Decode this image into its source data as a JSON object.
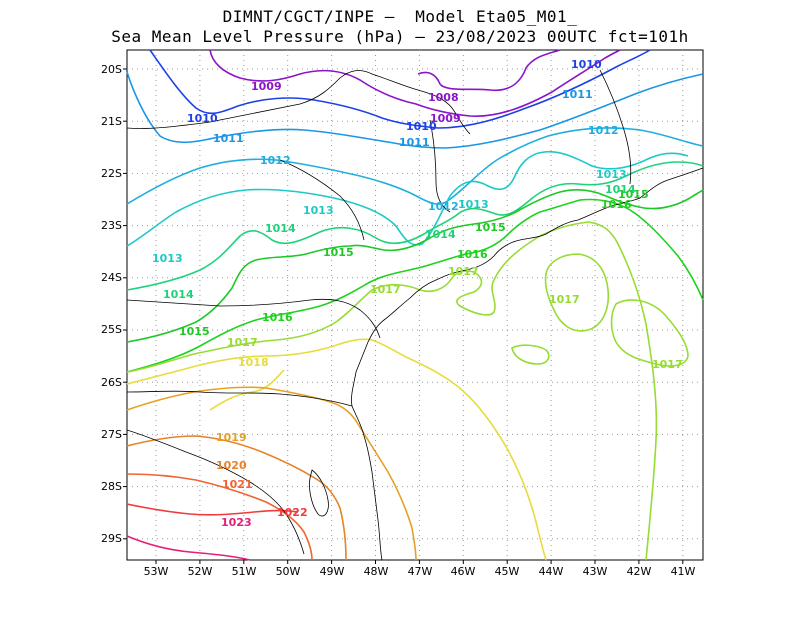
{
  "title": {
    "line1": "DIMNT/CGCT/INPE –  Model Eta05_M01_",
    "line2": "Sea Mean Level Pressure (hPa) – 23/08/2023 00UTC fct=101h"
  },
  "axes": {
    "lat_ticks": [
      "20S",
      "21S",
      "22S",
      "23S",
      "24S",
      "25S",
      "26S",
      "27S",
      "28S",
      "29S"
    ],
    "lon_ticks": [
      "53W",
      "52W",
      "51W",
      "50W",
      "49W",
      "48W",
      "47W",
      "46W",
      "45W",
      "44W",
      "43W",
      "42W",
      "41W"
    ]
  },
  "colors": {
    "c1008": "#8a14c8",
    "c1009": "#8a14c8",
    "c1010": "#1e40e6",
    "c1011": "#1996e6",
    "c1012": "#1eaee0",
    "c1013": "#1ec8c8",
    "c1014": "#1ed27a",
    "c1015": "#1ec828",
    "c1016": "#1ed21e",
    "c1017": "#96dc32",
    "c1018": "#e6dc3c",
    "c1019": "#e6a028",
    "c1020": "#e68228",
    "c1021": "#f06432",
    "c1022": "#f03c3c",
    "c1023": "#e61e78",
    "coast": "#000000",
    "grid": "#999999"
  },
  "isobar_labels": [
    {
      "text": "1009",
      "color": "c1009"
    },
    {
      "text": "1008",
      "color": "c1008"
    },
    {
      "text": "1009",
      "color": "c1009"
    },
    {
      "text": "1010",
      "color": "c1010"
    },
    {
      "text": "1010",
      "color": "c1010"
    },
    {
      "text": "1010",
      "color": "c1010"
    },
    {
      "text": "1011",
      "color": "c1011"
    },
    {
      "text": "1011",
      "color": "c1011"
    },
    {
      "text": "1011",
      "color": "c1011"
    },
    {
      "text": "1012",
      "color": "c1012"
    },
    {
      "text": "1012",
      "color": "c1012"
    },
    {
      "text": "1012",
      "color": "c1012"
    },
    {
      "text": "1013",
      "color": "c1013"
    },
    {
      "text": "1013",
      "color": "c1013"
    },
    {
      "text": "1013",
      "color": "c1013"
    },
    {
      "text": "1013",
      "color": "c1013"
    },
    {
      "text": "1014",
      "color": "c1014"
    },
    {
      "text": "1014",
      "color": "c1014"
    },
    {
      "text": "1014",
      "color": "c1014"
    },
    {
      "text": "1014",
      "color": "c1014"
    },
    {
      "text": "1015",
      "color": "c1015"
    },
    {
      "text": "1015",
      "color": "c1015"
    },
    {
      "text": "1015",
      "color": "c1015"
    },
    {
      "text": "1015",
      "color": "c1015"
    },
    {
      "text": "1016",
      "color": "c1016"
    },
    {
      "text": "1016",
      "color": "c1016"
    },
    {
      "text": "1016",
      "color": "c1016"
    },
    {
      "text": "1017",
      "color": "c1017"
    },
    {
      "text": "1017",
      "color": "c1017"
    },
    {
      "text": "1017",
      "color": "c1017"
    },
    {
      "text": "1017",
      "color": "c1017"
    },
    {
      "text": "1017",
      "color": "c1017"
    },
    {
      "text": "1018",
      "color": "c1018"
    },
    {
      "text": "1019",
      "color": "c1019"
    },
    {
      "text": "1020",
      "color": "c1020"
    },
    {
      "text": "1021",
      "color": "c1021"
    },
    {
      "text": "1022",
      "color": "c1022"
    },
    {
      "text": "1023",
      "color": "c1023"
    }
  ]
}
